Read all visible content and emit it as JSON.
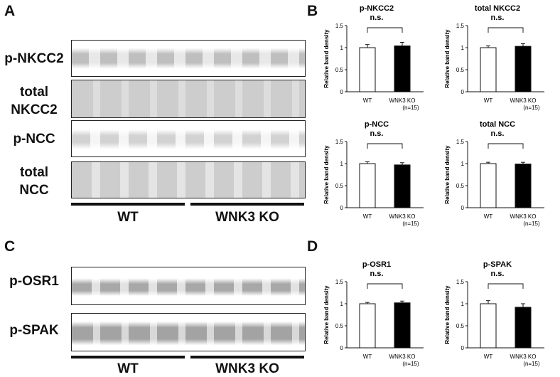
{
  "panels": {
    "a": "A",
    "b": "B",
    "c": "C",
    "d": "D"
  },
  "blots": {
    "p_nkcc2": "p-NKCC2",
    "total_nkcc2_l1": "total",
    "total_nkcc2_l2": "NKCC2",
    "p_ncc": "p-NCC",
    "total_ncc_l1": "total",
    "total_ncc_l2": "NCC",
    "p_osr1": "p-OSR1",
    "p_spak": "p-SPAK"
  },
  "groups": {
    "top": {
      "wt": "WT",
      "ko": "WNK3 KO"
    },
    "bottom": {
      "wt": "WT",
      "ko": "WNK3 KO"
    }
  },
  "chart_data": [
    {
      "type": "bar",
      "title": "p-NKCC2",
      "ylabel": "Relative band density",
      "categories": [
        "WT",
        "WNK3 KO"
      ],
      "n_label": "(n=15)",
      "values": [
        1.0,
        1.04
      ],
      "errors": [
        0.07,
        0.08
      ],
      "ylim": [
        0,
        1.5
      ],
      "yticks": [
        "0",
        "0.5",
        "1",
        "1.5"
      ],
      "significance": "n.s.",
      "colors": [
        "#ffffff",
        "#000000"
      ]
    },
    {
      "type": "bar",
      "title": "total NKCC2",
      "ylabel": "Relative band density",
      "categories": [
        "WT",
        "WNK3 KO"
      ],
      "n_label": "(n=15)",
      "values": [
        1.0,
        1.03
      ],
      "errors": [
        0.04,
        0.06
      ],
      "ylim": [
        0,
        1.5
      ],
      "yticks": [
        "0",
        "0.5",
        "1",
        "1.5"
      ],
      "significance": "n.s.",
      "colors": [
        "#ffffff",
        "#000000"
      ]
    },
    {
      "type": "bar",
      "title": "p-NCC",
      "ylabel": "Relative band density",
      "categories": [
        "WT",
        "WNK3 KO"
      ],
      "n_label": "(n=15)",
      "values": [
        1.0,
        0.97
      ],
      "errors": [
        0.04,
        0.05
      ],
      "ylim": [
        0,
        1.5
      ],
      "yticks": [
        "0",
        "0.5",
        "1",
        "1.5"
      ],
      "significance": "n.s.",
      "colors": [
        "#ffffff",
        "#000000"
      ]
    },
    {
      "type": "bar",
      "title": "total NCC",
      "ylabel": "Relative band density",
      "categories": [
        "WT",
        "WNK3 KO"
      ],
      "n_label": "(n=15)",
      "values": [
        1.0,
        0.99
      ],
      "errors": [
        0.03,
        0.04
      ],
      "ylim": [
        0,
        1.5
      ],
      "yticks": [
        "0",
        "0.5",
        "1",
        "1.5"
      ],
      "significance": "n.s.",
      "colors": [
        "#ffffff",
        "#000000"
      ]
    },
    {
      "type": "bar",
      "title": "p-OSR1",
      "ylabel": "Relative band density",
      "categories": [
        "WT",
        "WNK3 KO"
      ],
      "n_label": "(n=15)",
      "values": [
        1.0,
        1.02
      ],
      "errors": [
        0.03,
        0.04
      ],
      "ylim": [
        0,
        1.5
      ],
      "yticks": [
        "0",
        "0.5",
        "1",
        "1.5"
      ],
      "significance": "n.s.",
      "colors": [
        "#ffffff",
        "#000000"
      ]
    },
    {
      "type": "bar",
      "title": "p-SPAK",
      "ylabel": "Relative band density",
      "categories": [
        "WT",
        "WNK3 KO"
      ],
      "n_label": "(n=15)",
      "values": [
        1.0,
        0.92
      ],
      "errors": [
        0.07,
        0.08
      ],
      "ylim": [
        0,
        1.5
      ],
      "yticks": [
        "0",
        "0.5",
        "1",
        "1.5"
      ],
      "significance": "n.s.",
      "colors": [
        "#ffffff",
        "#000000"
      ]
    }
  ]
}
